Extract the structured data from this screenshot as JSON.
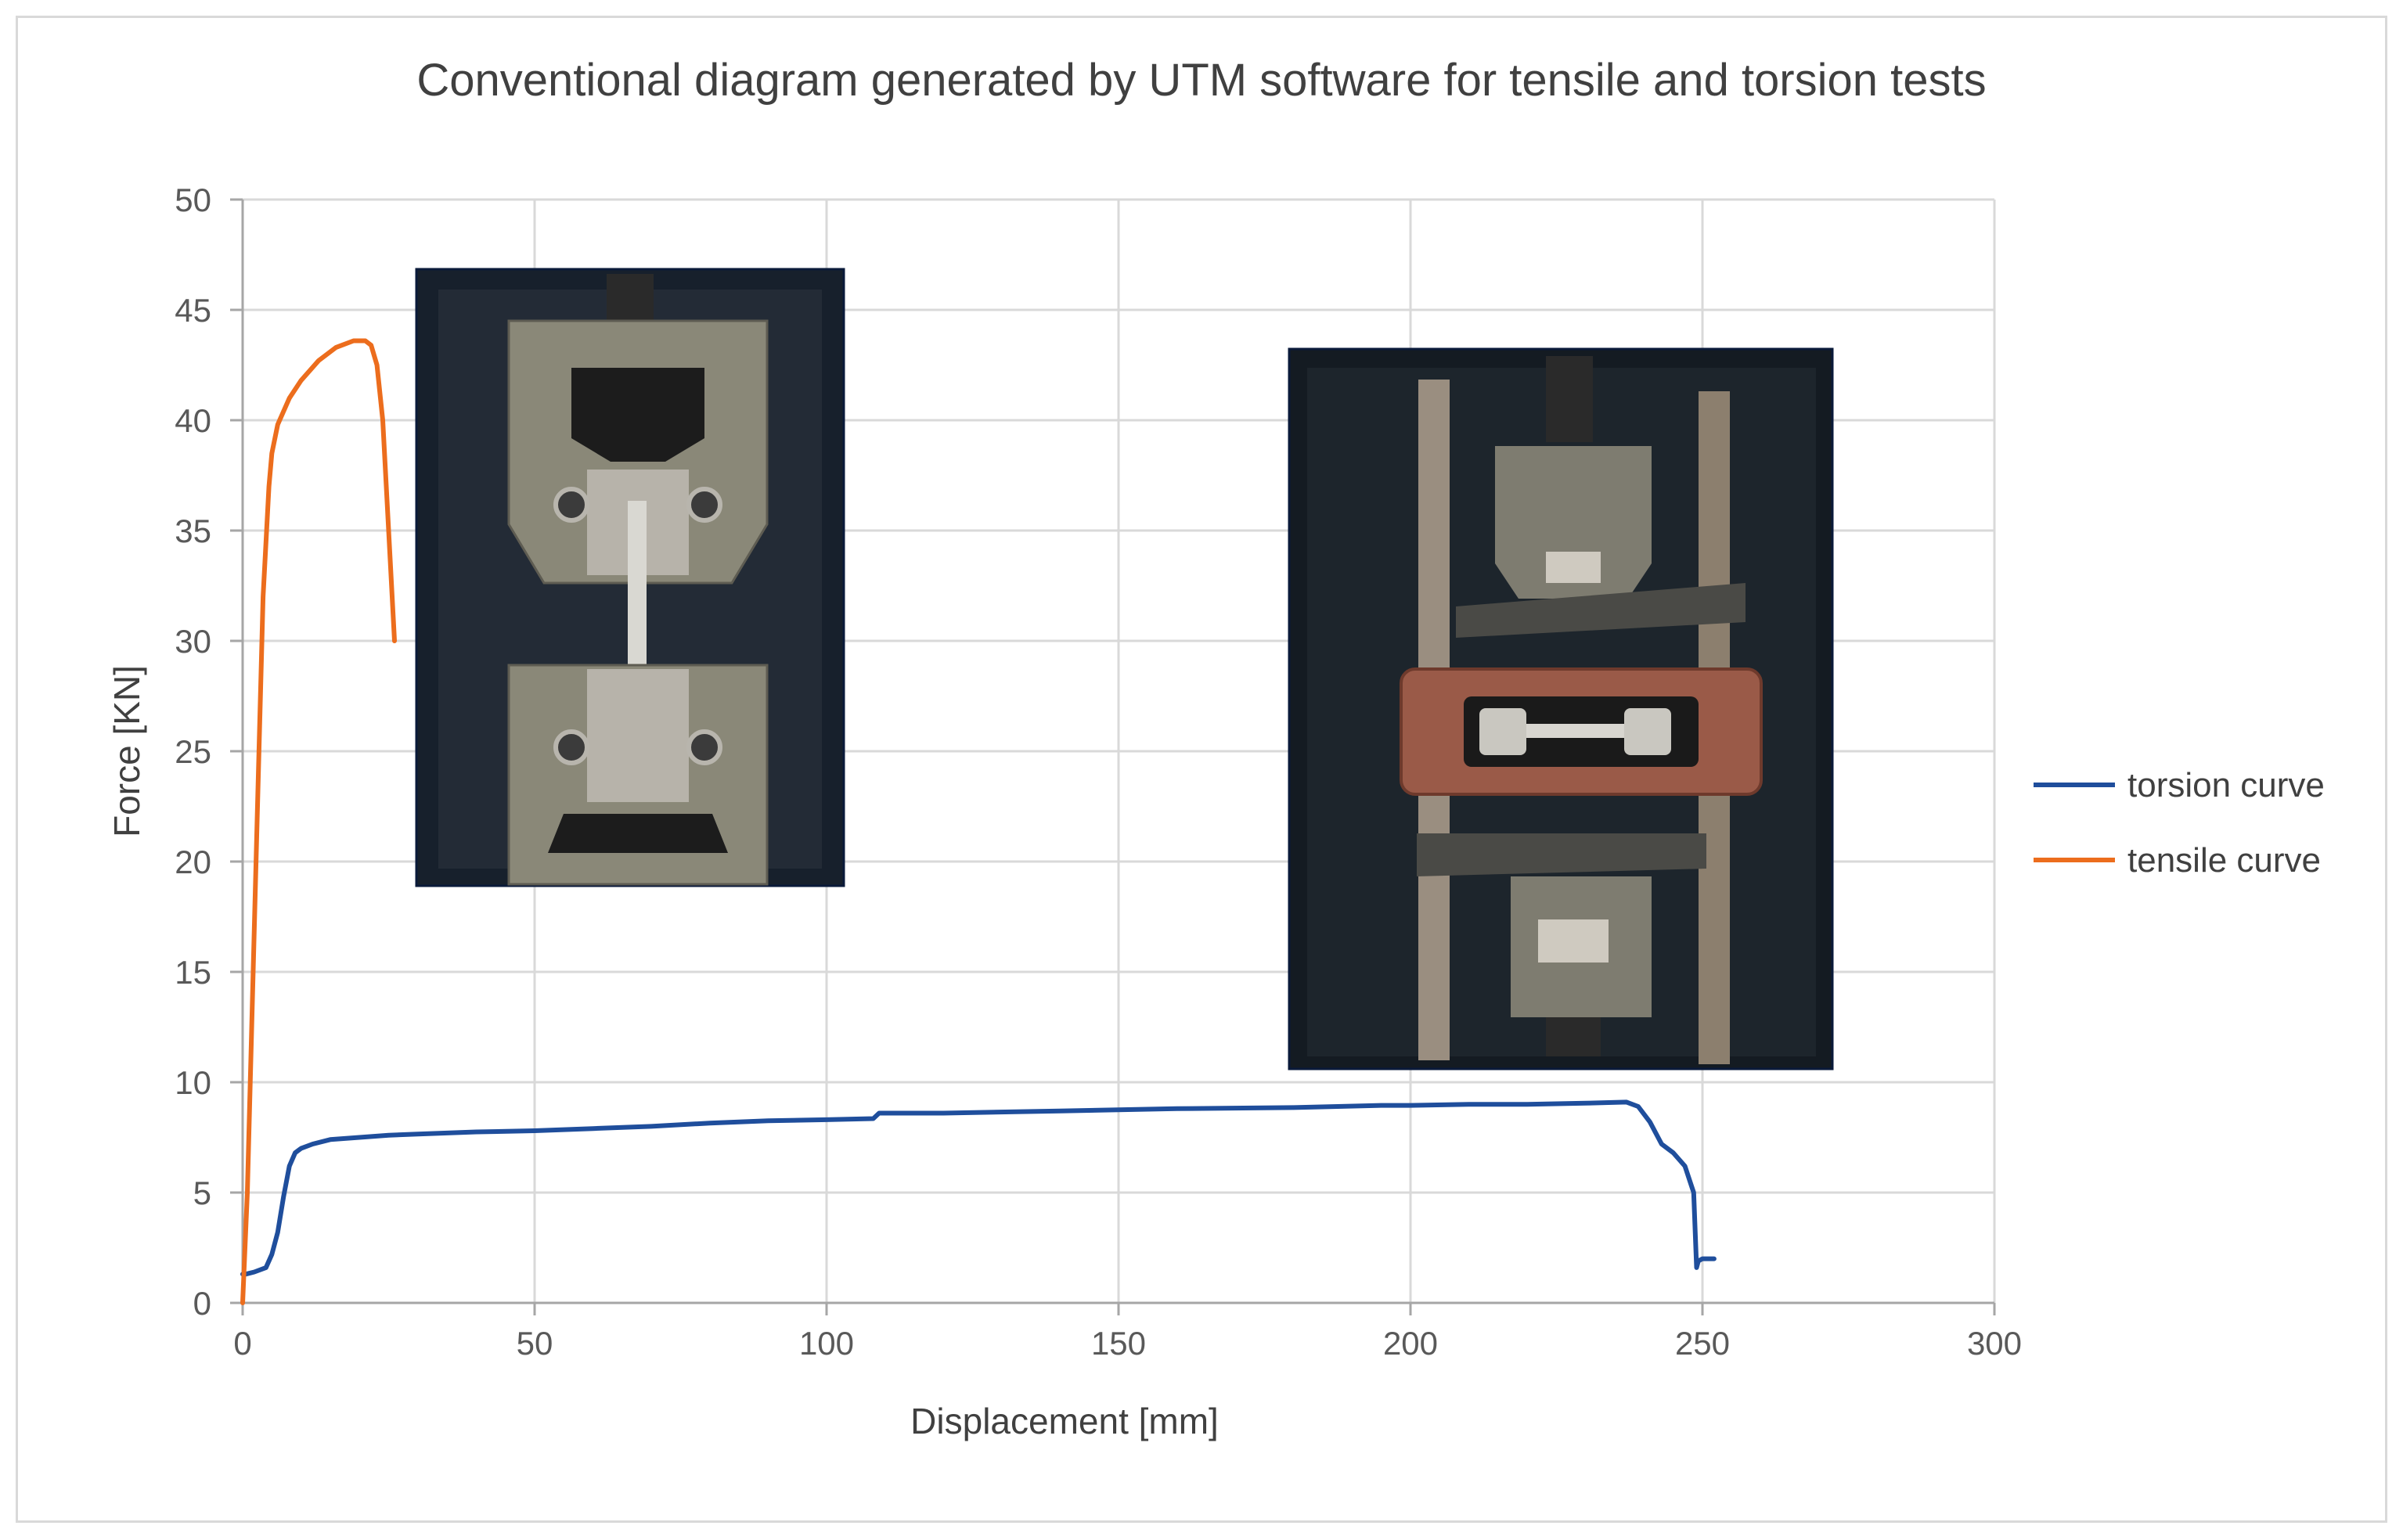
{
  "chart_data": {
    "type": "line",
    "title": "Conventional diagram generated by UTM software for tensile and torsion tests",
    "xlabel": "Displacement [mm]",
    "ylabel": "Force [KN]",
    "xlim": [
      0,
      300
    ],
    "ylim": [
      0,
      50
    ],
    "x_ticks": [
      0,
      50,
      100,
      150,
      200,
      250,
      300
    ],
    "y_ticks": [
      0,
      5,
      10,
      15,
      20,
      25,
      30,
      35,
      40,
      45,
      50
    ],
    "x_tick_labels": [
      "0",
      "50",
      "100",
      "150",
      "200",
      "250",
      "300"
    ],
    "y_tick_labels": [
      "0",
      "5",
      "10",
      "15",
      "20",
      "25",
      "30",
      "35",
      "40",
      "45",
      "50"
    ],
    "grid": true,
    "legend_position": "right",
    "series": [
      {
        "name": "torsion curve",
        "color": "#1f4e9c",
        "x": [
          0,
          0.5,
          2,
          4,
          5,
          6,
          7,
          8,
          9,
          10,
          12,
          15,
          20,
          25,
          30,
          40,
          50,
          60,
          70,
          80,
          90,
          100,
          108,
          109,
          120,
          140,
          160,
          180,
          195,
          200,
          210,
          220,
          230,
          237,
          239,
          241,
          243,
          245,
          247,
          248.5,
          249,
          249.3,
          250,
          252
        ],
        "y": [
          1.3,
          1.3,
          1.4,
          1.6,
          2.2,
          3.2,
          4.8,
          6.2,
          6.8,
          7.0,
          7.2,
          7.4,
          7.5,
          7.6,
          7.65,
          7.75,
          7.8,
          7.9,
          8.0,
          8.15,
          8.25,
          8.3,
          8.35,
          8.6,
          8.6,
          8.7,
          8.8,
          8.85,
          8.95,
          8.95,
          9.0,
          9.0,
          9.05,
          9.1,
          8.9,
          8.2,
          7.2,
          6.8,
          6.2,
          5.0,
          1.6,
          1.9,
          2.0,
          2.0
        ]
      },
      {
        "name": "tensile curve",
        "color": "#ec6d1d",
        "x": [
          0,
          0.8,
          1.5,
          2.5,
          3.5,
          4.5,
          5,
          6,
          8,
          10,
          13,
          16,
          19,
          21,
          22,
          23,
          24,
          25,
          26
        ],
        "y": [
          0,
          5,
          12,
          22,
          32,
          37,
          38.5,
          39.8,
          41.0,
          41.8,
          42.7,
          43.3,
          43.6,
          43.6,
          43.4,
          42.5,
          40,
          35,
          30
        ]
      }
    ]
  },
  "insets": [
    {
      "name": "tensile-test-photo",
      "description_icon": "tensile-grips-image"
    },
    {
      "name": "torsion-test-photo",
      "description_icon": "torsion-fixture-image"
    }
  ]
}
